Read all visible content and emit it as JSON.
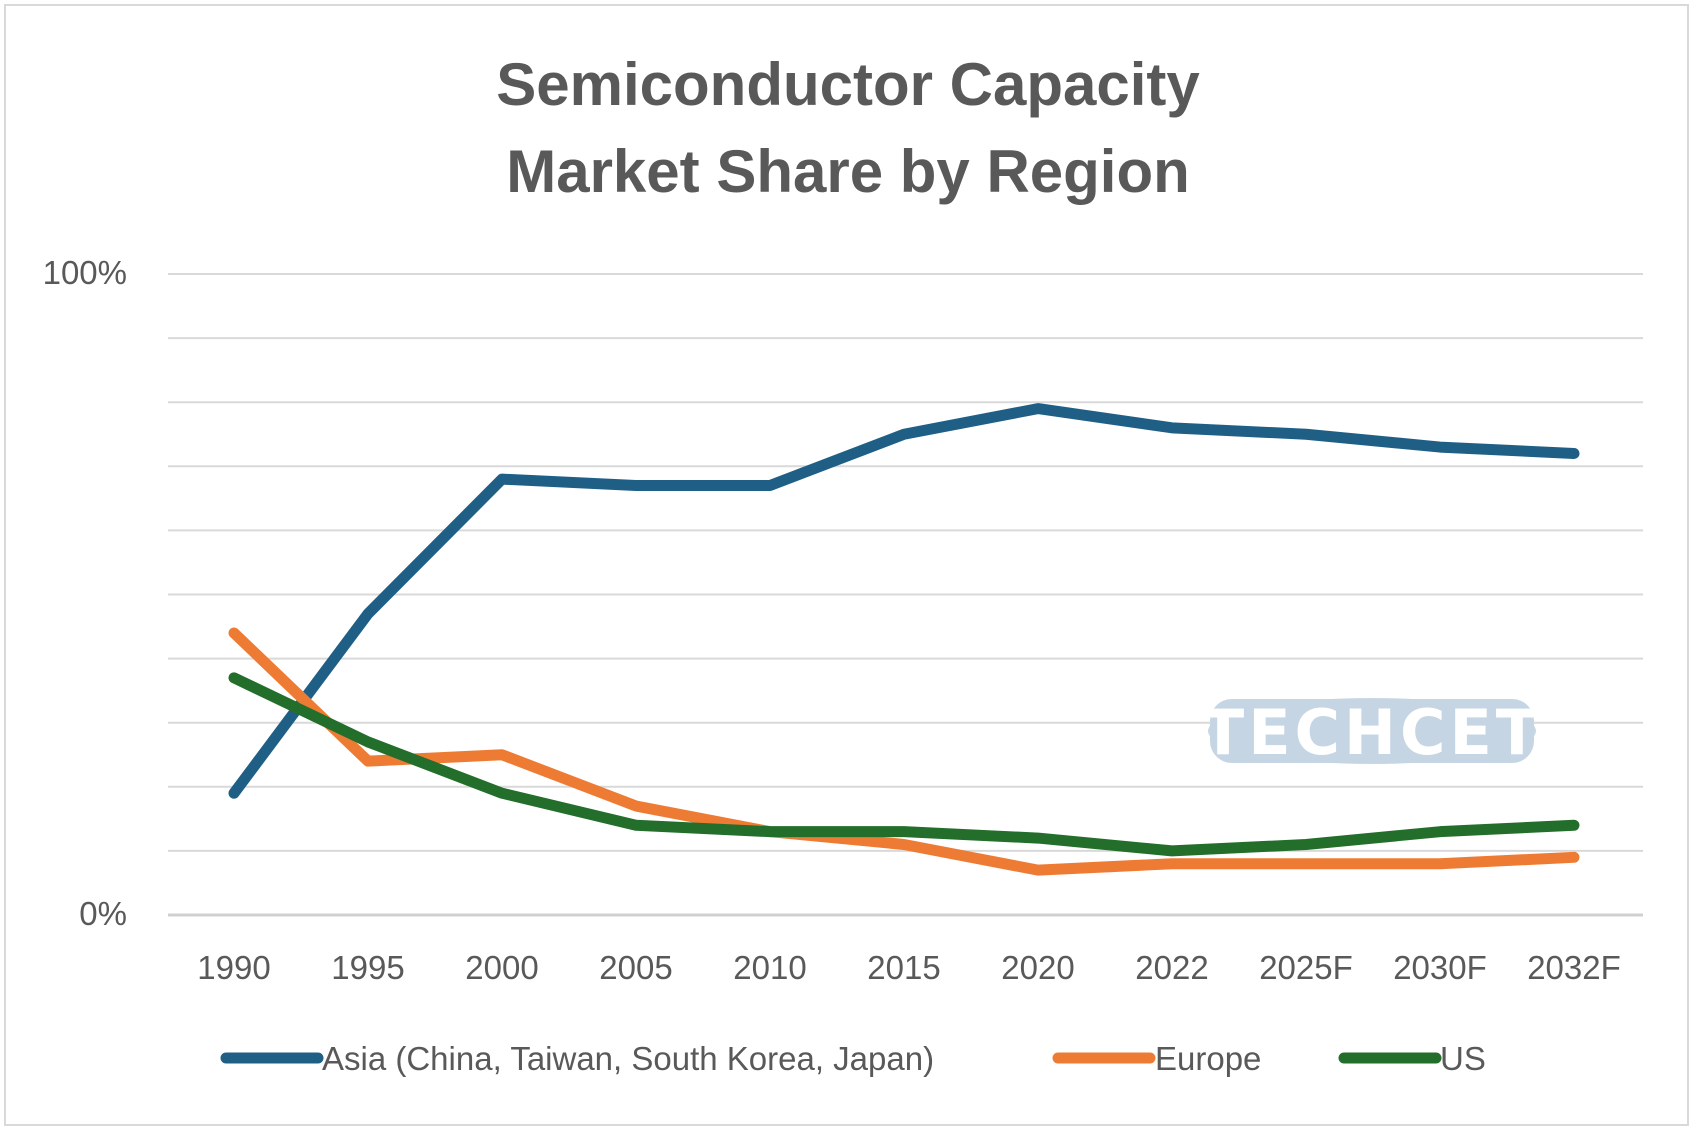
{
  "chart_data": {
    "type": "line",
    "title_line1": "Semiconductor Capacity",
    "title_line2": "Market Share by Region",
    "categories": [
      "1990",
      "1995",
      "2000",
      "2005",
      "2010",
      "2015",
      "2020",
      "2022",
      "2025F",
      "2030F",
      "2032F"
    ],
    "y_tick_labels": [
      "100%",
      "0%"
    ],
    "ylim": [
      0,
      100
    ],
    "gridlines": true,
    "gridline_step": 10,
    "legend_position": "bottom",
    "watermark": "TECHCET",
    "series": [
      {
        "name": "Asia (China, Taiwan, South Korea, Japan)",
        "color": "#1f5f86",
        "values": [
          19,
          47,
          68,
          67,
          67,
          75,
          79,
          76,
          75,
          73,
          72
        ]
      },
      {
        "name": "Europe",
        "color": "#ee7b33",
        "values": [
          44,
          24,
          25,
          17,
          13,
          11,
          7,
          8,
          8,
          8,
          9
        ]
      },
      {
        "name": "US",
        "color": "#236e2a",
        "values": [
          37,
          27,
          19,
          14,
          13,
          13,
          12,
          10,
          11,
          13,
          14
        ]
      }
    ]
  }
}
